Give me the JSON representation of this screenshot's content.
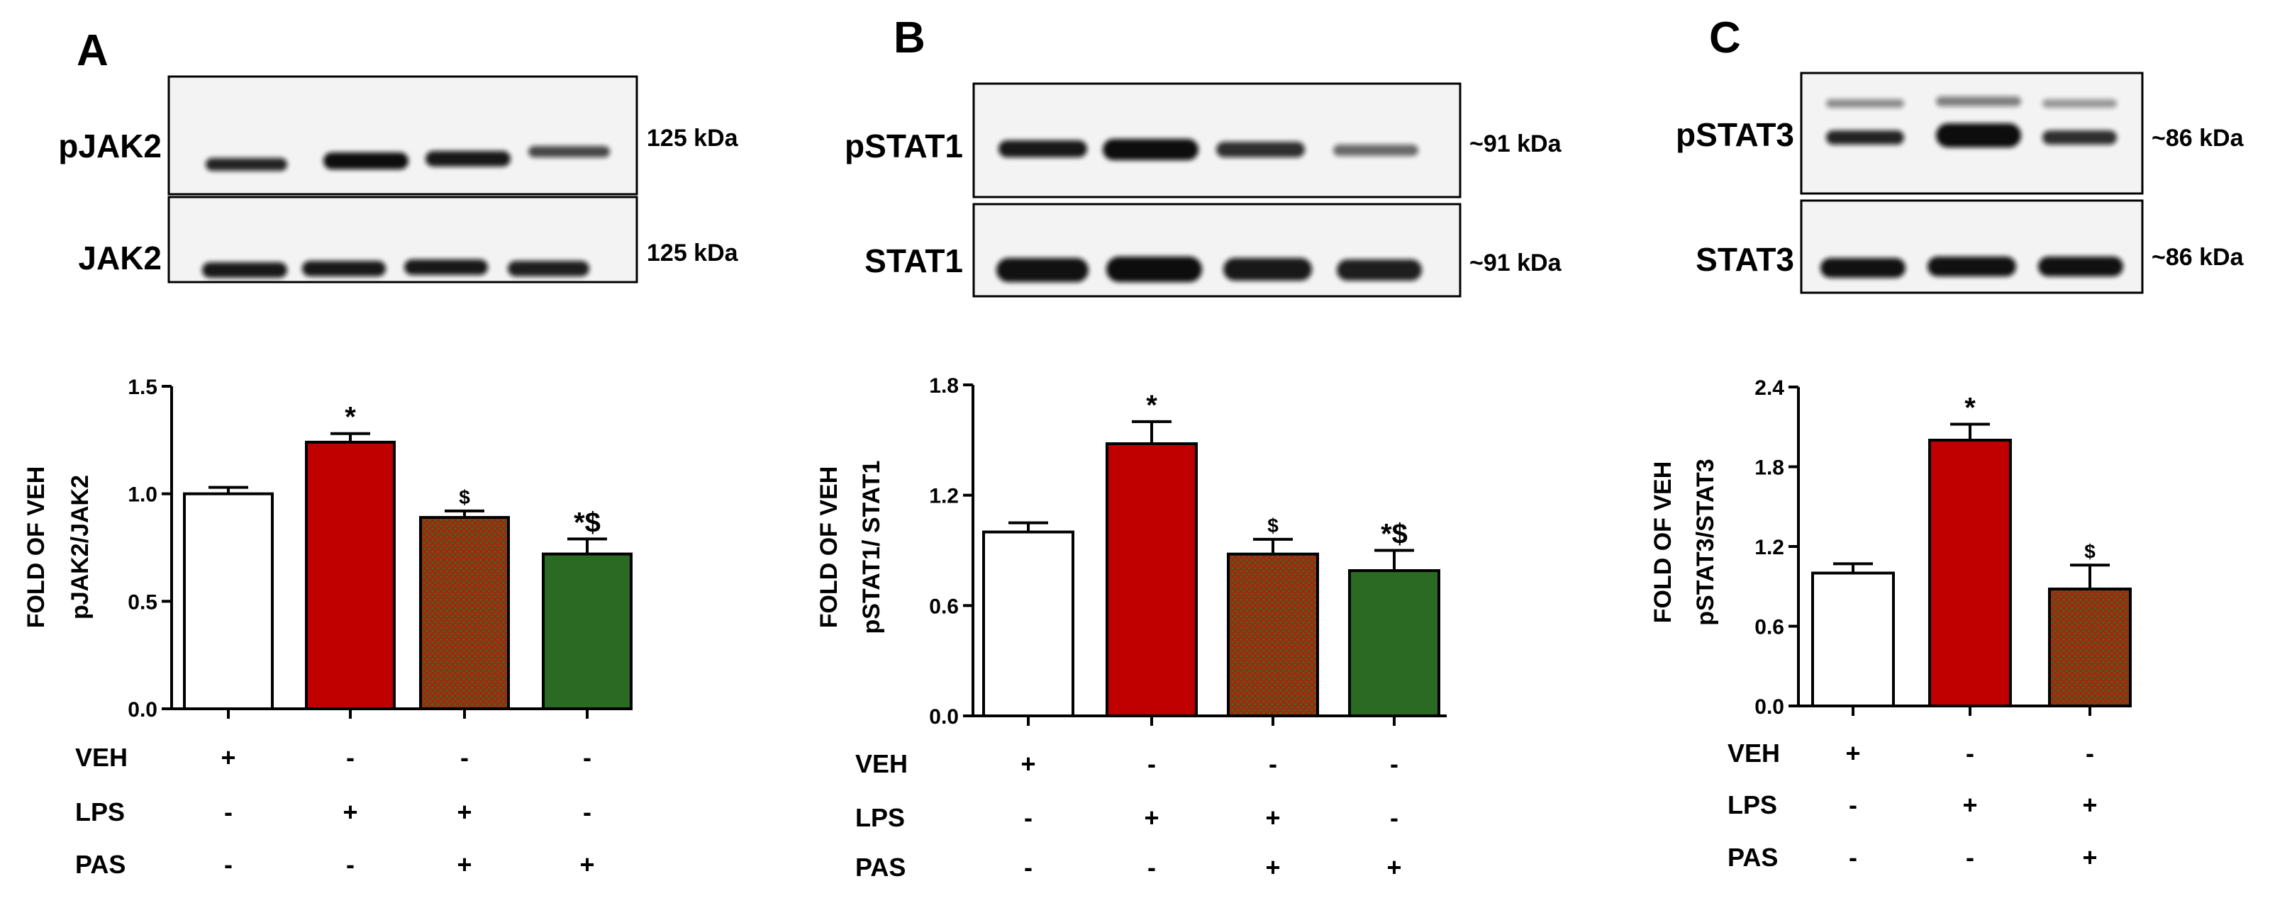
{
  "panels": [
    {
      "letter": "A",
      "blots": [
        {
          "label": "pJAK2",
          "kda": "125 kDa"
        },
        {
          "label": "JAK2",
          "kda": "125 kDa"
        }
      ],
      "conditions": [
        {
          "name": "VEH",
          "values": [
            "+",
            "-",
            "-",
            "-"
          ]
        },
        {
          "name": "LPS",
          "values": [
            "-",
            "+",
            "+",
            "-"
          ]
        },
        {
          "name": "PAS",
          "values": [
            "-",
            "-",
            "+",
            "+"
          ]
        }
      ]
    },
    {
      "letter": "B",
      "blots": [
        {
          "label": "pSTAT1",
          "kda": "~91 kDa"
        },
        {
          "label": "STAT1",
          "kda": "~91 kDa"
        }
      ],
      "conditions": [
        {
          "name": "VEH",
          "values": [
            "+",
            "-",
            "-",
            "-"
          ]
        },
        {
          "name": "LPS",
          "values": [
            "-",
            "+",
            "+",
            "-"
          ]
        },
        {
          "name": "PAS",
          "values": [
            "-",
            "-",
            "+",
            "+"
          ]
        }
      ]
    },
    {
      "letter": "C",
      "blots": [
        {
          "label": "pSTAT3",
          "kda": "~86 kDa"
        },
        {
          "label": "STAT3",
          "kda": "~86 kDa"
        }
      ],
      "conditions": [
        {
          "name": "VEH",
          "values": [
            "+",
            "-",
            "-"
          ]
        },
        {
          "name": "LPS",
          "values": [
            "-",
            "+",
            "+"
          ]
        },
        {
          "name": "PAS",
          "values": [
            "-",
            "-",
            "+"
          ]
        }
      ]
    }
  ],
  "colors": {
    "veh": "#ffffff",
    "lps": "#c00000",
    "lps_pas": "#a0280e",
    "pas": "#2a6a22"
  },
  "chart_data": [
    {
      "type": "bar",
      "ylabel_line1": "FOLD OF VEH",
      "ylabel_line2": "pJAK2/JAK2",
      "ylim": [
        0,
        1.5
      ],
      "yticks": [
        "0.0",
        "0.5",
        "1.0",
        "1.5"
      ],
      "values": [
        1.0,
        1.24,
        0.89,
        0.72
      ],
      "errors": [
        0.03,
        0.04,
        0.03,
        0.07
      ],
      "fills": [
        "veh",
        "lps",
        "lps_pas",
        "pas"
      ],
      "annotations": [
        "",
        "*",
        "$",
        "*$"
      ]
    },
    {
      "type": "bar",
      "ylabel_line1": "FOLD OF VEH",
      "ylabel_line2": "pSTAT1/ STAT1",
      "ylim": [
        0,
        1.8
      ],
      "yticks": [
        "0.0",
        "0.6",
        "1.2",
        "1.8"
      ],
      "values": [
        1.0,
        1.48,
        0.88,
        0.79
      ],
      "errors": [
        0.05,
        0.12,
        0.08,
        0.11
      ],
      "fills": [
        "veh",
        "lps",
        "lps_pas",
        "pas"
      ],
      "annotations": [
        "",
        "*",
        "$",
        "*$"
      ]
    },
    {
      "type": "bar",
      "ylabel_line1": "FOLD OF VEH",
      "ylabel_line2": "pSTAT3/STAT3",
      "ylim": [
        0,
        2.4
      ],
      "yticks": [
        "0.0",
        "0.6",
        "1.2",
        "1.8",
        "2.4"
      ],
      "values": [
        1.0,
        2.0,
        0.88
      ],
      "errors": [
        0.07,
        0.12,
        0.18
      ],
      "fills": [
        "veh",
        "lps",
        "lps_pas"
      ],
      "annotations": [
        "",
        "*",
        "$"
      ]
    }
  ]
}
